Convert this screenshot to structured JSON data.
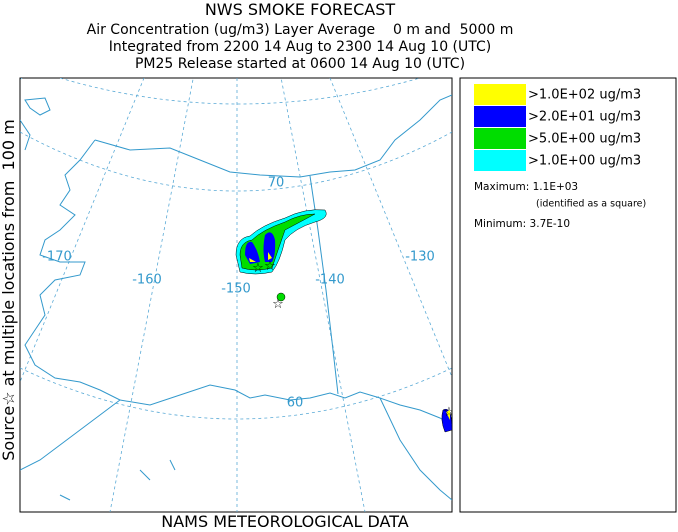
{
  "header": {
    "title": "NWS SMOKE FORECAST",
    "lines": [
      "Air Concentration (ug/m3) Layer Average    0 m and  5000 m",
      "Integrated from 2200 14 Aug to 2300 14 Aug 10 (UTC)",
      "PM25 Release started at 0600 14 Aug 10 (UTC)"
    ]
  },
  "side_label": "Source☆ at multiple locations from  100 m",
  "footer": "NAMS METEOROLOGICAL DATA",
  "map": {
    "longitude_labels": [
      "-170",
      "-160",
      "-150",
      "-140",
      "-130"
    ],
    "latitude_labels": [
      "70",
      "60"
    ]
  },
  "legend": {
    "entries": [
      {
        "label": ">1.0E+02 ug/m3",
        "color": "#ffff00"
      },
      {
        "label": ">2.0E+01 ug/m3",
        "color": "#0000ff"
      },
      {
        "label": ">5.0E+00 ug/m3",
        "color": "#00dd00"
      },
      {
        "label": ">1.0E+00 ug/m3",
        "color": "#00ffff"
      }
    ],
    "maximum_label": "Maximum:",
    "maximum": "1.1E+03",
    "maximum_note": "(identified as a square)",
    "minimum_label": "Minimum:",
    "minimum": "3.7E-10"
  }
}
